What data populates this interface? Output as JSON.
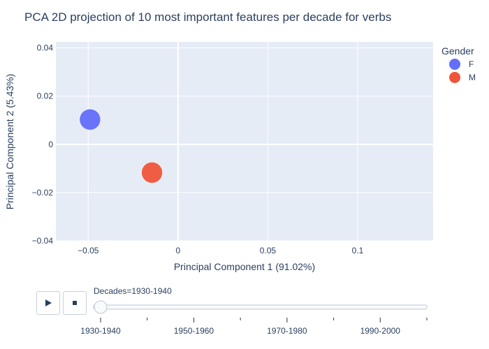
{
  "chart_data": {
    "type": "scatter",
    "title": "PCA 2D projection of 10 most important features per decade for verbs",
    "xlabel": "Principal Component 1 (91.02%)",
    "ylabel": "Principal Component 2 (5.43%)",
    "xlim": [
      -0.068,
      0.142
    ],
    "ylim": [
      -0.04,
      0.0425
    ],
    "x_ticks": [
      -0.05,
      0,
      0.05,
      0.1
    ],
    "x_tick_labels": [
      "−0.05",
      "0",
      "0.05",
      "0.1"
    ],
    "y_ticks": [
      -0.04,
      -0.02,
      0,
      0.02,
      0.04
    ],
    "y_tick_labels": [
      "−0.04",
      "−0.02",
      "0",
      "0.02",
      "0.04"
    ],
    "grid": true,
    "legend": {
      "title": "Gender",
      "position": "top-right"
    },
    "series": [
      {
        "name": "F",
        "color": "#636efa",
        "x": [
          -0.049
        ],
        "y": [
          0.0103
        ]
      },
      {
        "name": "M",
        "color": "#ef553b",
        "x": [
          -0.0145
        ],
        "y": [
          -0.0117
        ]
      }
    ]
  },
  "slider": {
    "current_label": "Decades=1930-1940",
    "steps": [
      "1930-1940",
      "1950-1960",
      "1970-1980",
      "1990-2000"
    ],
    "selected_index": 0,
    "play_icon": "play-icon",
    "stop_icon": "stop-icon"
  }
}
